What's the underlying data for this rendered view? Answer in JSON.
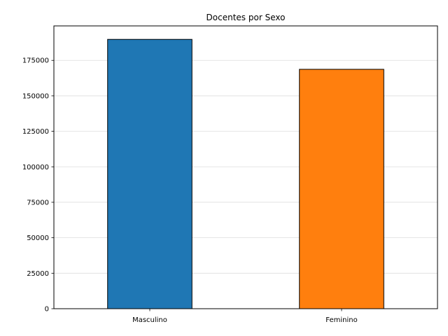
{
  "chart_data": {
    "type": "bar",
    "title": "Docentes por Sexo",
    "xlabel": "",
    "ylabel": "",
    "categories": [
      "Masculino",
      "Feminino"
    ],
    "values": [
      189800,
      168700
    ],
    "colors": [
      "#1f77b4",
      "#ff7f0e"
    ],
    "edge_color": "#000000",
    "ylim": [
      0,
      199290
    ],
    "yticks": [
      0,
      25000,
      50000,
      75000,
      100000,
      125000,
      150000,
      175000
    ],
    "grid": "horizontal",
    "legend": "none"
  }
}
